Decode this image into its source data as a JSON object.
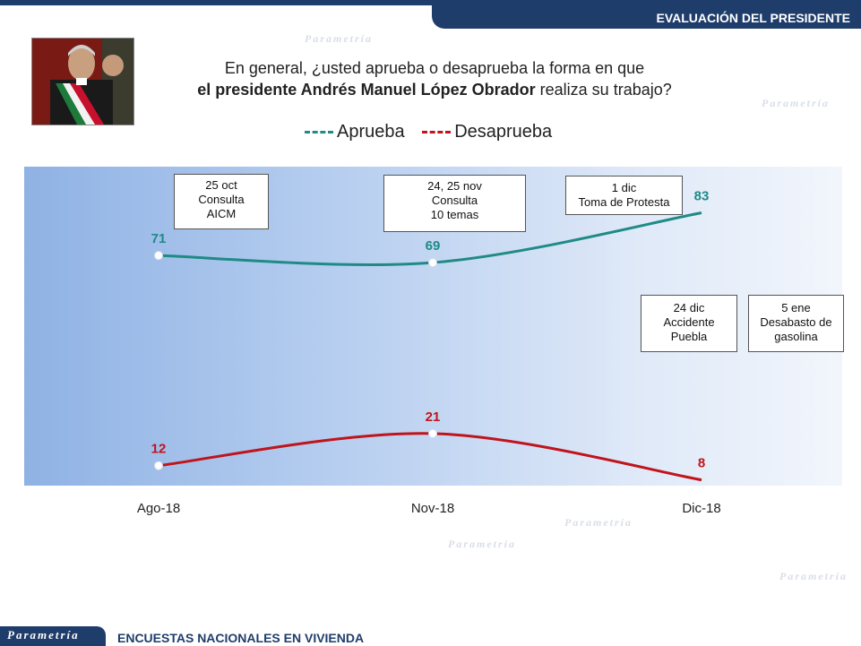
{
  "header": {
    "title": "EVALUACIÓN DEL PRESIDENTE"
  },
  "question": {
    "line1": "En general, ¿usted aprueba o desaprueba la forma en que",
    "line2_bold": "el presidente Andrés Manuel López Obrador",
    "line2_rest": " realiza su trabajo?"
  },
  "watermark": "Parametría",
  "footer": {
    "logo": "Parametría",
    "text": "ENCUESTAS NACIONALES  EN VIVIENDA"
  },
  "colors": {
    "aprueba": "#1f8a86",
    "desaprueba": "#c0141c",
    "brand": "#1f3d6b"
  },
  "chart_data": {
    "type": "line",
    "categories": [
      "Ago-18",
      "Nov-18",
      "Dic-18"
    ],
    "series": [
      {
        "name": "Aprueba",
        "values": [
          71,
          69,
          83
        ],
        "color": "#1f8a86"
      },
      {
        "name": "Desaprueba",
        "values": [
          12,
          21,
          8
        ],
        "color": "#c0141c"
      }
    ],
    "legend": "top-center",
    "annotations": [
      {
        "lines": [
          "25 oct",
          "Consulta",
          "AICM"
        ]
      },
      {
        "lines": [
          "24, 25 nov",
          "Consulta",
          "10 temas"
        ]
      },
      {
        "lines": [
          "1 dic",
          "Toma de Protesta"
        ]
      },
      {
        "lines": [
          "24 dic",
          "Accidente",
          "Puebla"
        ]
      },
      {
        "lines": [
          "5 ene",
          "Desabasto de",
          "gasolina"
        ]
      }
    ]
  }
}
